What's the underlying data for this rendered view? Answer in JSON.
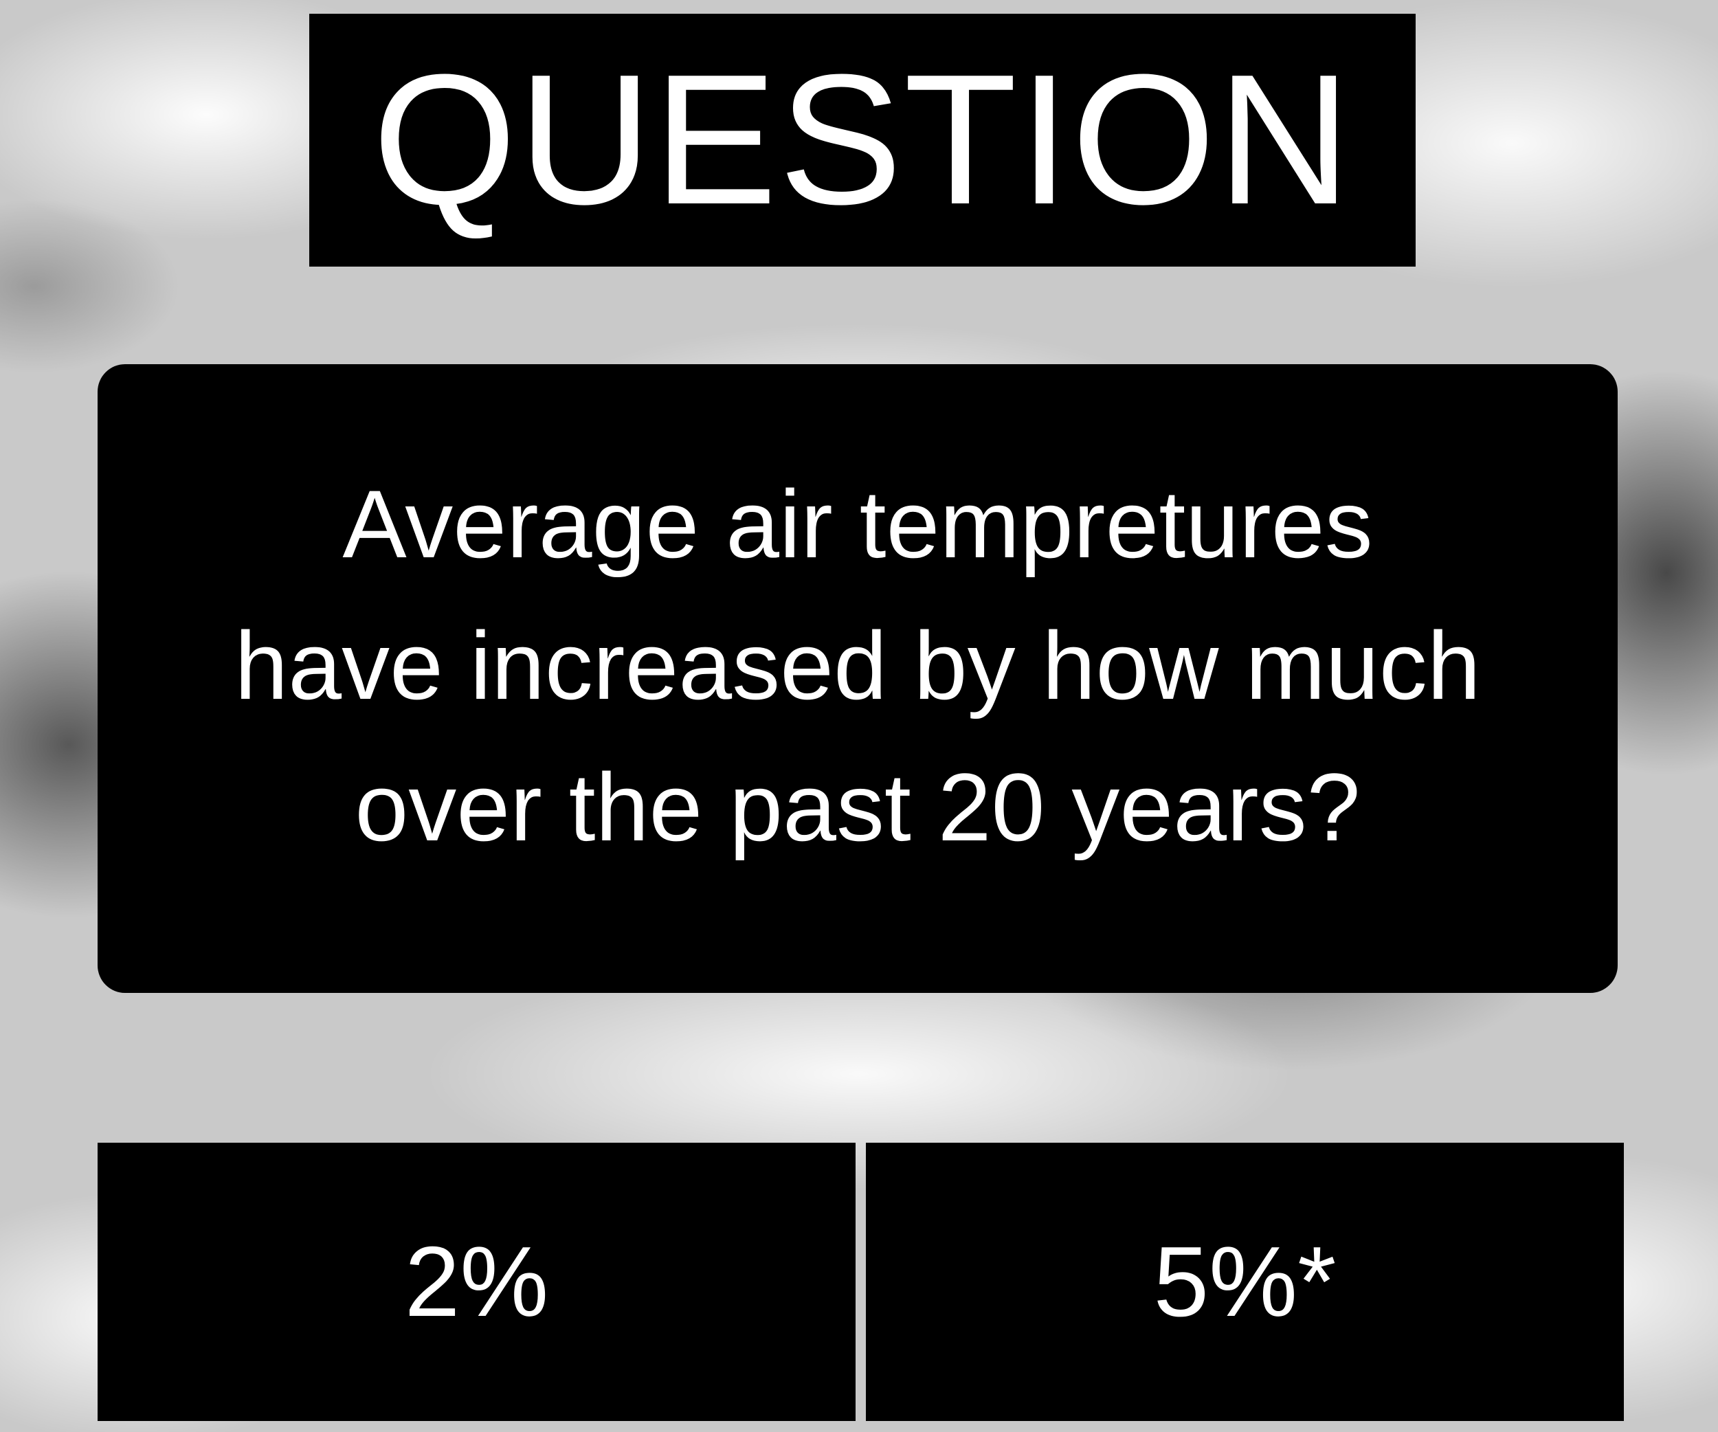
{
  "title": "QUESTION",
  "question": {
    "lines": [
      "Average air tempretures",
      "have increased by how much",
      "over the past 20 years?"
    ]
  },
  "answers": [
    {
      "label": "2%"
    },
    {
      "label": "5%*"
    }
  ],
  "colors": {
    "panel": "#000000",
    "text": "#ffffff"
  }
}
